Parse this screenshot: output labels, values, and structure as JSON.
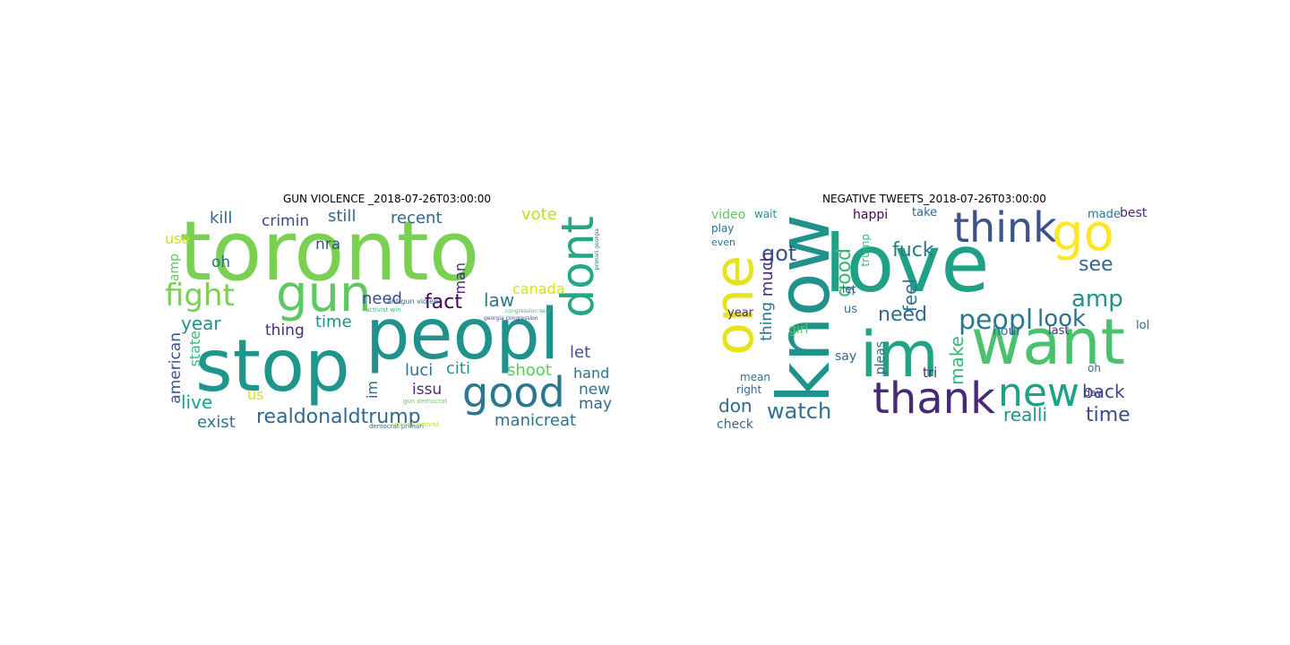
{
  "figure": {
    "left": {
      "title": "GUN VIOLENCE _2018-07-26T03:00:00",
      "words": [
        {
          "text": "toronto",
          "color": "#7ad151"
        },
        {
          "text": "peopl",
          "color": "#21918c"
        },
        {
          "text": "stop",
          "color": "#1f968b"
        },
        {
          "text": "gun",
          "color": "#5ec962"
        },
        {
          "text": "fight",
          "color": "#7ad151"
        },
        {
          "text": "dont",
          "color": "#22a884"
        },
        {
          "text": "good",
          "color": "#2a788e"
        },
        {
          "text": "realdonaldtrump",
          "color": "#31688e"
        },
        {
          "text": "manicreat",
          "color": "#2c728e"
        },
        {
          "text": "american",
          "color": "#3b528b"
        },
        {
          "text": "state",
          "color": "#35b779"
        },
        {
          "text": "year",
          "color": "#21918c"
        },
        {
          "text": "live",
          "color": "#1f9e89"
        },
        {
          "text": "exist",
          "color": "#2a788e"
        },
        {
          "text": "kill",
          "color": "#31688e"
        },
        {
          "text": "crimin",
          "color": "#3e4989"
        },
        {
          "text": "still",
          "color": "#31688e"
        },
        {
          "text": "recent",
          "color": "#31688e"
        },
        {
          "text": "vote",
          "color": "#bddf26"
        },
        {
          "text": "use",
          "color": "#d2e21b"
        },
        {
          "text": "amp",
          "color": "#5ec962"
        },
        {
          "text": "oh",
          "color": "#2c728e"
        },
        {
          "text": "nra",
          "color": "#3b528b"
        },
        {
          "text": "need",
          "color": "#3e4989"
        },
        {
          "text": "fact",
          "color": "#440154"
        },
        {
          "text": "law",
          "color": "#2a788e"
        },
        {
          "text": "man",
          "color": "#482878"
        },
        {
          "text": "canada",
          "color": "#d2e21b"
        },
        {
          "text": "time",
          "color": "#21918c"
        },
        {
          "text": "thing",
          "color": "#472d7b"
        },
        {
          "text": "let",
          "color": "#3b528b"
        },
        {
          "text": "luci",
          "color": "#2c728e"
        },
        {
          "text": "citi",
          "color": "#21918c"
        },
        {
          "text": "shoot",
          "color": "#5ec962"
        },
        {
          "text": "hand",
          "color": "#2c728e"
        },
        {
          "text": "issu",
          "color": "#482878"
        },
        {
          "text": "im",
          "color": "#31688e"
        },
        {
          "text": "us",
          "color": "#d2e21b"
        },
        {
          "text": "new",
          "color": "#2a788e"
        },
        {
          "text": "may",
          "color": "#31688e"
        },
        {
          "text": "antigun violenc",
          "color": "#31688e"
        },
        {
          "text": "activist win",
          "color": "#35b779"
        },
        {
          "text": "democrat primari",
          "color": "#31688e"
        },
        {
          "text": "violenc activist",
          "color": "#b5de2b"
        },
        {
          "text": "gun democrat",
          "color": "#6ece58"
        },
        {
          "text": "georgia congression",
          "color": "#3e4989"
        },
        {
          "text": "primari georgia",
          "color": "#2c728e"
        },
        {
          "text": "congression seat",
          "color": "#35b779"
        }
      ]
    },
    "right": {
      "title": "NEGATIVE TWEETS_2018-07-26T03:00:00",
      "words": [
        {
          "text": "love",
          "color": "#1fa187"
        },
        {
          "text": "know",
          "color": "#21918c"
        },
        {
          "text": "im",
          "color": "#20a486"
        },
        {
          "text": "want",
          "color": "#4ac16d"
        },
        {
          "text": "one",
          "color": "#e5e419"
        },
        {
          "text": "think",
          "color": "#3b528b"
        },
        {
          "text": "go",
          "color": "#fde725"
        },
        {
          "text": "thank",
          "color": "#482878"
        },
        {
          "text": "new",
          "color": "#1fa187"
        },
        {
          "text": "peopl",
          "color": "#2a788e"
        },
        {
          "text": "amp",
          "color": "#21918c"
        },
        {
          "text": "look",
          "color": "#2c728e"
        },
        {
          "text": "see",
          "color": "#31688e"
        },
        {
          "text": "need",
          "color": "#31688e"
        },
        {
          "text": "good",
          "color": "#35b779"
        },
        {
          "text": "fuck",
          "color": "#2a788e"
        },
        {
          "text": "got",
          "color": "#3b528b"
        },
        {
          "text": "much",
          "color": "#472d7b"
        },
        {
          "text": "thing",
          "color": "#2c728e"
        },
        {
          "text": "watch",
          "color": "#2c728e"
        },
        {
          "text": "don",
          "color": "#31688e"
        },
        {
          "text": "make",
          "color": "#35b779"
        },
        {
          "text": "feel",
          "color": "#2c728e"
        },
        {
          "text": "realli",
          "color": "#21918c"
        },
        {
          "text": "time",
          "color": "#3e4989"
        },
        {
          "text": "back",
          "color": "#3e4989"
        },
        {
          "text": "video",
          "color": "#5ec962"
        },
        {
          "text": "wait",
          "color": "#21918c"
        },
        {
          "text": "happi",
          "color": "#440154"
        },
        {
          "text": "take",
          "color": "#31688e"
        },
        {
          "text": "made",
          "color": "#2a788e"
        },
        {
          "text": "best",
          "color": "#482878"
        },
        {
          "text": "play",
          "color": "#31688e"
        },
        {
          "text": "even",
          "color": "#2c728e"
        },
        {
          "text": "year",
          "color": "#472d7b"
        },
        {
          "text": "mean",
          "color": "#2c728e"
        },
        {
          "text": "right",
          "color": "#31688e"
        },
        {
          "text": "check",
          "color": "#31688e"
        },
        {
          "text": "girl",
          "color": "#5ec962"
        },
        {
          "text": "say",
          "color": "#31688e"
        },
        {
          "text": "pleas",
          "color": "#31688e"
        },
        {
          "text": "tri",
          "color": "#472d7b"
        },
        {
          "text": "hour",
          "color": "#2c728e"
        },
        {
          "text": "last",
          "color": "#472d7b"
        },
        {
          "text": "lol",
          "color": "#31688e"
        },
        {
          "text": "day",
          "color": "#482878"
        },
        {
          "text": "trump",
          "color": "#35b779"
        },
        {
          "text": "us",
          "color": "#2c728e"
        },
        {
          "text": "let",
          "color": "#3b528b"
        },
        {
          "text": "oh",
          "color": "#2c728e"
        }
      ]
    }
  }
}
